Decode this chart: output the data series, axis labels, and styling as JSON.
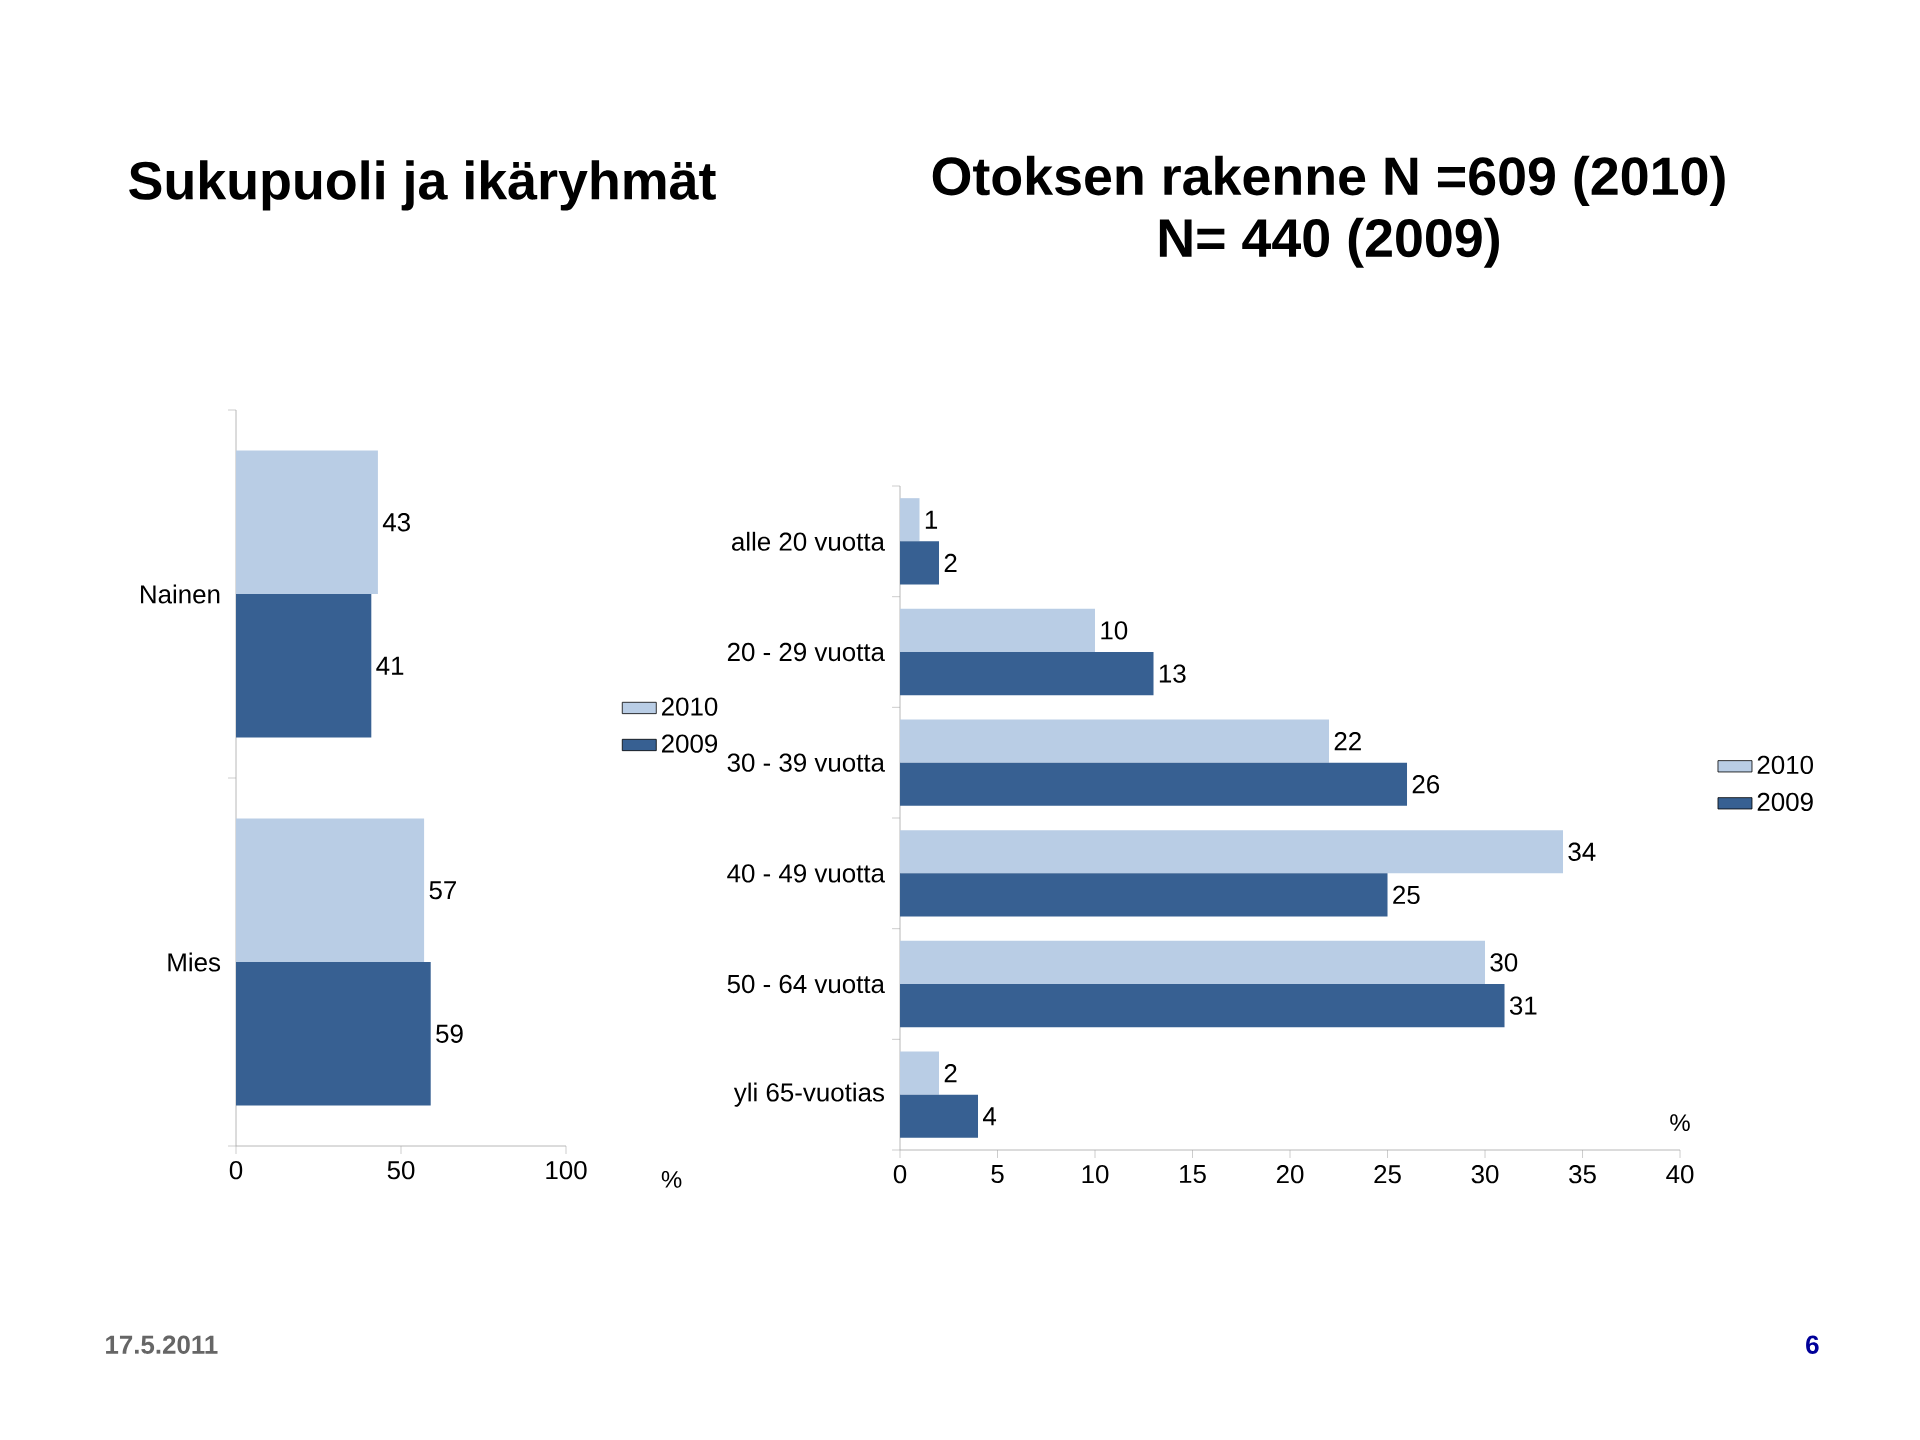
{
  "chart_data": [
    {
      "type": "bar",
      "orientation": "horizontal",
      "title": "Sukupuoli ja ikäryhmät",
      "xlabel": "%",
      "categories": [
        "Nainen",
        "Mies"
      ],
      "series": [
        {
          "name": "2010",
          "color": "#b9cde5",
          "values": [
            43,
            57
          ]
        },
        {
          "name": "2009",
          "color": "#376092",
          "values": [
            41,
            59
          ]
        }
      ],
      "xlim": [
        0,
        100
      ],
      "xticks": [
        0,
        50,
        100
      ],
      "data_labels": true,
      "legend": "right",
      "annotations": [
        "17.5.2011",
        "6"
      ]
    },
    {
      "type": "bar",
      "orientation": "horizontal",
      "title": "Otoksen rakenne N =609 (2010)",
      "subtitle": "N= 440 (2009)",
      "xlabel": "%",
      "categories": [
        "alle 20 vuotta",
        "20 - 29 vuotta",
        "30 - 39 vuotta",
        "40 - 49 vuotta",
        "50 - 64 vuotta",
        "yli 65-vuotias"
      ],
      "series": [
        {
          "name": "2010",
          "color": "#b9cde5",
          "values": [
            1,
            10,
            22,
            34,
            30,
            2
          ]
        },
        {
          "name": "2009",
          "color": "#376092",
          "values": [
            2,
            13,
            26,
            25,
            31,
            4
          ]
        }
      ],
      "xlim": [
        0,
        40
      ],
      "xticks": [
        0,
        5,
        10,
        15,
        20,
        25,
        30,
        35,
        40
      ],
      "data_labels": true,
      "legend": "right"
    }
  ]
}
